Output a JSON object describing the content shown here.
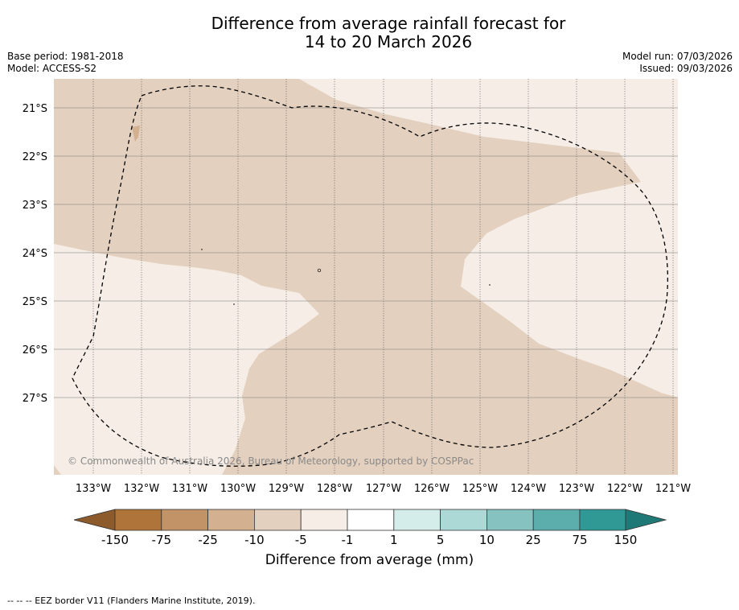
{
  "title": {
    "line1": "Difference from average rainfall forecast for",
    "line2": "14 to 20 March 2026"
  },
  "meta": {
    "base_period": "Base period: 1981-2018",
    "model": "Model: ACCESS-S2",
    "model_run": "Model run: 07/03/2026",
    "issued": "Issued: 09/03/2026"
  },
  "map": {
    "lat_labels": [
      "21°S",
      "22°S",
      "23°S",
      "24°S",
      "25°S",
      "26°S",
      "27°S"
    ],
    "lon_labels": [
      "133°W",
      "132°W",
      "131°W",
      "130°W",
      "129°W",
      "128°W",
      "127°W",
      "126°W",
      "125°W",
      "124°W",
      "123°W",
      "122°W",
      "121°W"
    ],
    "copyright": "© Commonwealth of Australia 2026, Bureau of Meteorology, supported by COSPPac",
    "colors": {
      "dry_light": "#e3d0be",
      "near_avg_dry": "#f5ede6",
      "boundary": "#000000"
    }
  },
  "legend": {
    "tick_labels": [
      "-150",
      "-75",
      "-25",
      "-10",
      "-5",
      "-1",
      "1",
      "5",
      "10",
      "25",
      "75",
      "150"
    ],
    "colors": [
      "#ae743a",
      "#c19367",
      "#d2b090",
      "#e3d0be",
      "#f5ede6",
      "#ffffff",
      "#d4ecea",
      "#acd8d6",
      "#85c2c0",
      "#5baeac",
      "#319995",
      "#1f7a77"
    ],
    "title": "Difference from average (mm)"
  },
  "footer": "--  --  -- EEZ border V11 (Flanders Marine Institute, 2019)."
}
